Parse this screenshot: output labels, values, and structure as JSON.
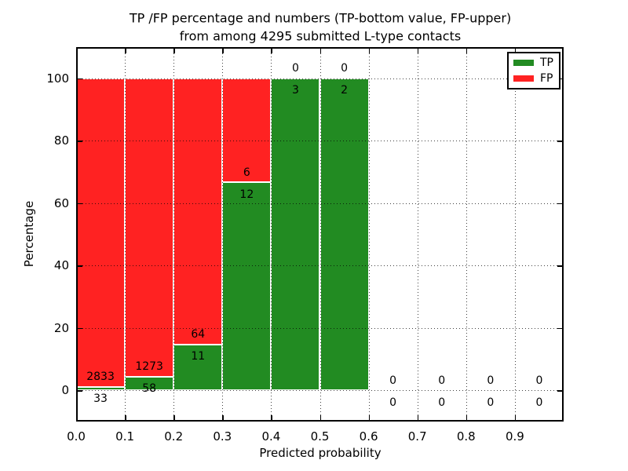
{
  "chart_data": {
    "type": "bar",
    "stacked": true,
    "title": "TP /FP percentage and numbers (TP-bottom value, FP-upper) from among 4295 submitted L-type contacts",
    "title_lines": [
      "TP /FP percentage and numbers (TP-bottom value, FP-upper)",
      "from among 4295 submitted L-type contacts"
    ],
    "xlabel": "Predicted probability",
    "ylabel": "Percentage",
    "xlim": [
      0.0,
      1.0
    ],
    "ylim": [
      -10,
      110
    ],
    "grid": true,
    "grid_style": "dotted",
    "legend_position": "upper right",
    "xticks": [
      {
        "value": 0.0,
        "label": "0.0"
      },
      {
        "value": 0.1,
        "label": "0.1"
      },
      {
        "value": 0.2,
        "label": "0.2"
      },
      {
        "value": 0.3,
        "label": "0.3"
      },
      {
        "value": 0.4,
        "label": "0.4"
      },
      {
        "value": 0.5,
        "label": "0.5"
      },
      {
        "value": 0.6,
        "label": "0.6"
      },
      {
        "value": 0.7,
        "label": "0.7"
      },
      {
        "value": 0.8,
        "label": "0.8"
      },
      {
        "value": 0.9,
        "label": "0.9"
      }
    ],
    "yticks": [
      {
        "value": 0,
        "label": "0"
      },
      {
        "value": 20,
        "label": "20"
      },
      {
        "value": 40,
        "label": "40"
      },
      {
        "value": 60,
        "label": "60"
      },
      {
        "value": 80,
        "label": "80"
      },
      {
        "value": 100,
        "label": "100"
      }
    ],
    "series": [
      {
        "name": "TP",
        "color": "#228b22",
        "position": "bottom"
      },
      {
        "name": "FP",
        "color": "#ff2222",
        "position": "top"
      }
    ],
    "bins": [
      {
        "x_range": [
          0.0,
          0.1
        ],
        "tp_count": 33,
        "fp_count": 2833,
        "tp_percent": 1.15,
        "fp_percent": 98.85
      },
      {
        "x_range": [
          0.1,
          0.2
        ],
        "tp_count": 58,
        "fp_count": 1273,
        "tp_percent": 4.36,
        "fp_percent": 95.64
      },
      {
        "x_range": [
          0.2,
          0.3
        ],
        "tp_count": 11,
        "fp_count": 64,
        "tp_percent": 14.67,
        "fp_percent": 85.33
      },
      {
        "x_range": [
          0.3,
          0.4
        ],
        "tp_count": 12,
        "fp_count": 6,
        "tp_percent": 66.67,
        "fp_percent": 33.33
      },
      {
        "x_range": [
          0.4,
          0.5
        ],
        "tp_count": 3,
        "fp_count": 0,
        "tp_percent": 100,
        "fp_percent": 0
      },
      {
        "x_range": [
          0.5,
          0.6
        ],
        "tp_count": 2,
        "fp_count": 0,
        "tp_percent": 100,
        "fp_percent": 0
      },
      {
        "x_range": [
          0.6,
          0.7
        ],
        "tp_count": 0,
        "fp_count": 0,
        "tp_percent": 0,
        "fp_percent": 0
      },
      {
        "x_range": [
          0.7,
          0.8
        ],
        "tp_count": 0,
        "fp_count": 0,
        "tp_percent": 0,
        "fp_percent": 0
      },
      {
        "x_range": [
          0.8,
          0.9
        ],
        "tp_count": 0,
        "fp_count": 0,
        "tp_percent": 0,
        "fp_percent": 0
      },
      {
        "x_range": [
          0.9,
          1.0
        ],
        "tp_count": 0,
        "fp_count": 0,
        "tp_percent": 0,
        "fp_percent": 0
      }
    ]
  }
}
